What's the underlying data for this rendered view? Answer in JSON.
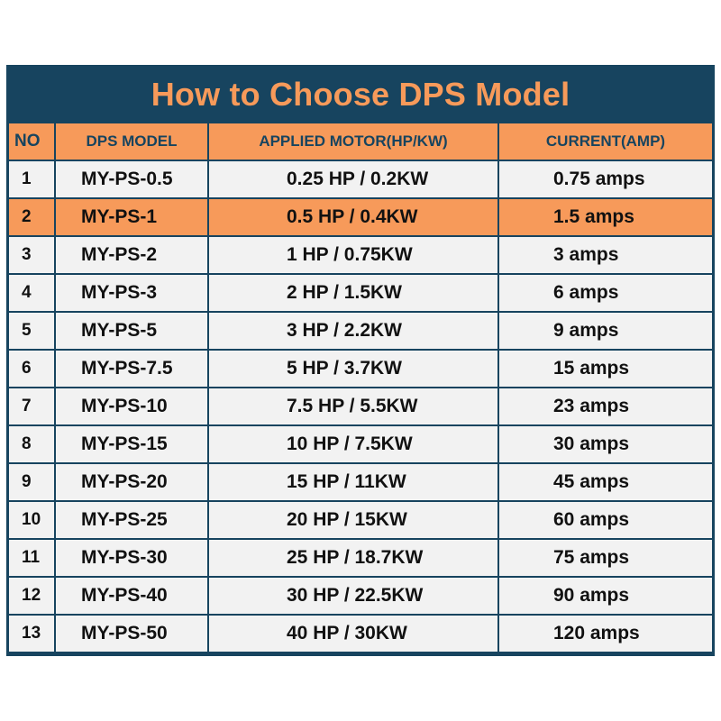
{
  "title": "How to Choose DPS Model",
  "headers": {
    "no": "NO",
    "model": "DPS MODEL",
    "motor": "APPLIED MOTOR(HP/KW)",
    "current": "CURRENT(AMP)"
  },
  "highlight_color": "#f79a5a",
  "border_color": "#17445f",
  "rows": [
    {
      "no": "1",
      "model": "MY-PS-0.5",
      "motor": "0.25 HP / 0.2KW",
      "current": "0.75 amps"
    },
    {
      "no": "2",
      "model": "MY-PS-1",
      "motor": "0.5 HP / 0.4KW",
      "current": "1.5 amps"
    },
    {
      "no": "3",
      "model": "MY-PS-2",
      "motor": "1 HP / 0.75KW",
      "current": "3 amps"
    },
    {
      "no": "4",
      "model": "MY-PS-3",
      "motor": "2 HP / 1.5KW",
      "current": "6 amps"
    },
    {
      "no": "5",
      "model": "MY-PS-5",
      "motor": "3 HP / 2.2KW",
      "current": "9 amps"
    },
    {
      "no": "6",
      "model": "MY-PS-7.5",
      "motor": "5 HP / 3.7KW",
      "current": "15 amps"
    },
    {
      "no": "7",
      "model": "MY-PS-10",
      "motor": "7.5 HP / 5.5KW",
      "current": "23 amps"
    },
    {
      "no": "8",
      "model": "MY-PS-15",
      "motor": "10 HP / 7.5KW",
      "current": "30 amps"
    },
    {
      "no": "9",
      "model": "MY-PS-20",
      "motor": "15 HP / 11KW",
      "current": "45 amps"
    },
    {
      "no": "10",
      "model": "MY-PS-25",
      "motor": "20 HP / 15KW",
      "current": "60 amps"
    },
    {
      "no": "11",
      "model": "MY-PS-30",
      "motor": "25 HP / 18.7KW",
      "current": "75 amps"
    },
    {
      "no": "12",
      "model": "MY-PS-40",
      "motor": "30 HP / 22.5KW",
      "current": "90 amps"
    },
    {
      "no": "13",
      "model": "MY-PS-50",
      "motor": "40 HP / 30KW",
      "current": "120 amps"
    }
  ]
}
